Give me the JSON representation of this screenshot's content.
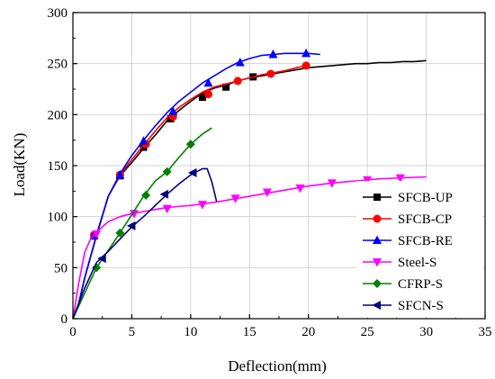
{
  "chart_data": {
    "type": "line",
    "xlabel": "Deflection(mm)",
    "ylabel": "Load(KN)",
    "xlim": [
      0,
      35
    ],
    "ylim": [
      0,
      300
    ],
    "xticks": [
      0,
      5,
      10,
      15,
      20,
      25,
      30,
      35
    ],
    "yticks": [
      0,
      50,
      100,
      150,
      200,
      250,
      300
    ],
    "grid": true,
    "legend_position": "bottom-right",
    "series": [
      {
        "name": "SFCB-UP",
        "color": "#000000",
        "marker": "square",
        "x": [
          0,
          0.5,
          1,
          2,
          3,
          4,
          5,
          6,
          7,
          8,
          9,
          10,
          11,
          12,
          13,
          14,
          15,
          16,
          17,
          18,
          19,
          20,
          21,
          22,
          23,
          24,
          25,
          26,
          27,
          28,
          29,
          30
        ],
        "y": [
          0,
          15,
          40,
          81,
          120,
          140,
          153,
          167,
          180,
          194,
          204,
          213,
          221,
          226,
          229,
          233,
          236,
          238,
          240,
          242,
          244,
          246,
          247,
          248,
          249,
          250,
          250,
          251,
          251,
          252,
          252,
          253
        ],
        "marker_x": [
          1.8,
          4.0,
          6.0,
          8.3,
          11.0,
          13.0,
          15.3
        ],
        "marker_y": [
          81,
          140,
          168,
          196,
          217,
          227,
          237
        ]
      },
      {
        "name": "SFCB-CP",
        "color": "#ff0000",
        "marker": "circle",
        "x": [
          0,
          0.5,
          1,
          2,
          3,
          4,
          5,
          6,
          7,
          8,
          9,
          10,
          11,
          12,
          13,
          14,
          15,
          16,
          17,
          18,
          19,
          19.8
        ],
        "y": [
          0,
          15,
          40,
          82,
          120,
          141,
          156,
          170,
          184,
          197,
          207,
          215,
          222,
          227,
          230,
          233,
          236,
          239,
          241,
          243,
          246,
          248
        ],
        "marker_x": [
          1.8,
          4.0,
          6.2,
          8.5,
          11.5,
          14.0,
          16.8,
          19.8
        ],
        "marker_y": [
          82,
          141,
          171,
          198,
          220,
          233,
          240,
          248
        ]
      },
      {
        "name": "SFCB-RE",
        "color": "#0000ff",
        "marker": "triangle-up",
        "x": [
          0,
          0.5,
          1,
          2,
          3,
          4,
          5,
          6,
          7,
          8,
          9,
          10,
          11,
          12,
          13,
          14,
          15,
          16,
          17,
          18,
          19,
          20,
          21
        ],
        "y": [
          0,
          15,
          40,
          82,
          120,
          142,
          160,
          175,
          189,
          202,
          213,
          222,
          231,
          238,
          245,
          251,
          255,
          258,
          259,
          260,
          260,
          260,
          259
        ],
        "marker_x": [
          1.8,
          4.0,
          6.0,
          8.5,
          11.5,
          14.2,
          17.0,
          19.8
        ],
        "marker_y": [
          82,
          141,
          174,
          203,
          231,
          251,
          259,
          260
        ]
      },
      {
        "name": "Steel-S",
        "color": "#ff00ff",
        "marker": "triangle-down",
        "x": [
          0,
          0.5,
          1,
          1.5,
          2,
          3,
          4,
          5,
          6,
          7,
          8,
          10,
          12,
          14,
          16,
          18,
          20,
          22,
          24,
          26,
          28,
          30
        ],
        "y": [
          0,
          35,
          65,
          78,
          85,
          95,
          100,
          103,
          105,
          107,
          109,
          111,
          114,
          118,
          122,
          126,
          130,
          133,
          135,
          137,
          138,
          139
        ],
        "marker_x": [
          2.0,
          5.2,
          8.0,
          11.0,
          13.8,
          16.5,
          19.3,
          22.0,
          25.0,
          27.8
        ],
        "marker_y": [
          83,
          103,
          108,
          112,
          118,
          124,
          128,
          133,
          136,
          138
        ]
      },
      {
        "name": "CFRP-S",
        "color": "#008000",
        "marker": "diamond",
        "x": [
          0,
          1,
          2,
          3,
          4,
          5,
          6,
          7,
          8,
          9,
          10,
          11,
          11.8
        ],
        "y": [
          0,
          25,
          50,
          67,
          84,
          102,
          120,
          135,
          144,
          158,
          171,
          181,
          187
        ],
        "marker_x": [
          2.0,
          4.0,
          6.2,
          8.0,
          10.0
        ],
        "marker_y": [
          50,
          84,
          121,
          144,
          171
        ]
      },
      {
        "name": "SFCN-S",
        "color": "#000080",
        "marker": "triangle-left",
        "x": [
          0,
          1,
          2,
          3,
          4,
          5,
          6,
          7,
          8,
          9,
          10,
          11,
          11.4,
          11.8,
          12.2
        ],
        "y": [
          0,
          30,
          55,
          66,
          78,
          90,
          100,
          111,
          122,
          132,
          141,
          147,
          147,
          134,
          115
        ],
        "marker_x": [
          2.5,
          5.0,
          7.8,
          10.2
        ],
        "marker_y": [
          59,
          91,
          122,
          143
        ]
      }
    ]
  }
}
